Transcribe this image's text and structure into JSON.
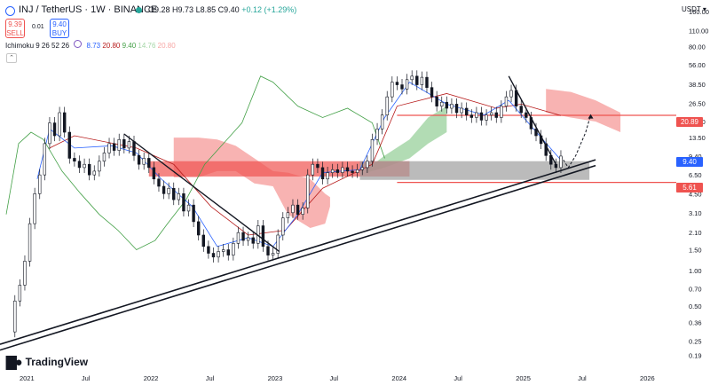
{
  "header": {
    "symbol": "INJ / TetherUS · 1W · BINANCE",
    "ohlc_open": "O9.28",
    "ohlc_high": "H9.73",
    "ohlc_low": "L8.85",
    "ohlc_close": "C9.40",
    "change": "+0.12 (+1.29%)",
    "sell_price": "9.39",
    "sell_label": "SELL",
    "spread": "0.01",
    "buy_price": "9.40",
    "buy_label": "BUY",
    "currency": "USDT",
    "indicator_name": "Ichimoku 9 26 52 26",
    "indicator_values": [
      "8.73",
      "20.80",
      "9.40",
      "14.76",
      "20.80"
    ]
  },
  "brand": {
    "logo_text": "TradingView"
  },
  "colors": {
    "up": "#26a69a",
    "down": "#ef5350",
    "candle": "#131722",
    "tenkan": "#2962ff",
    "kijun": "#b71c1c",
    "chikou": "#43a047",
    "cloud_bear": "#f7a6a4",
    "cloud_bull": "#a5d6a7",
    "accent": "#2962ff"
  },
  "price_tags": {
    "current": "9.40",
    "resistance": "20.89",
    "support": "5.61"
  },
  "chart_data": {
    "type": "candlestick",
    "scale": "log",
    "ylim": [
      0.14,
      200
    ],
    "y_ticks": [
      "160.00",
      "110.00",
      "80.00",
      "56.00",
      "38.50",
      "26.50",
      "18.50",
      "13.50",
      "9.40",
      "6.50",
      "4.50",
      "3.10",
      "2.10",
      "1.50",
      "1.00",
      "0.70",
      "0.50",
      "0.36",
      "0.25",
      "0.19"
    ],
    "x_ticks": [
      "2021",
      "Jul",
      "2022",
      "Jul",
      "2023",
      "Jul",
      "2024",
      "Jul",
      "2025",
      "Jul",
      "2026"
    ],
    "xlim": [
      2020.8,
      2026.25
    ],
    "closes": [
      [
        2020.87,
        0.3
      ],
      [
        2020.92,
        0.55
      ],
      [
        2020.96,
        0.75
      ],
      [
        2021.0,
        1.2
      ],
      [
        2021.04,
        2.5
      ],
      [
        2021.08,
        4.5
      ],
      [
        2021.12,
        6.5
      ],
      [
        2021.16,
        12.0
      ],
      [
        2021.2,
        18.0
      ],
      [
        2021.24,
        14.0
      ],
      [
        2021.28,
        22.0
      ],
      [
        2021.32,
        15.0
      ],
      [
        2021.36,
        9.0
      ],
      [
        2021.4,
        8.5
      ],
      [
        2021.44,
        7.5
      ],
      [
        2021.48,
        8.0
      ],
      [
        2021.52,
        6.5
      ],
      [
        2021.56,
        7.0
      ],
      [
        2021.6,
        8.5
      ],
      [
        2021.64,
        10.0
      ],
      [
        2021.68,
        12.0
      ],
      [
        2021.72,
        10.5
      ],
      [
        2021.76,
        13.0
      ],
      [
        2021.8,
        11.0
      ],
      [
        2021.84,
        12.5
      ],
      [
        2021.88,
        9.5
      ],
      [
        2021.92,
        8.0
      ],
      [
        2021.96,
        9.0
      ],
      [
        2022.0,
        7.5
      ],
      [
        2022.04,
        6.0
      ],
      [
        2022.08,
        5.2
      ],
      [
        2022.12,
        4.5
      ],
      [
        2022.16,
        5.0
      ],
      [
        2022.2,
        4.0
      ],
      [
        2022.24,
        4.5
      ],
      [
        2022.28,
        3.2
      ],
      [
        2022.32,
        3.6
      ],
      [
        2022.36,
        2.6
      ],
      [
        2022.4,
        2.0
      ],
      [
        2022.44,
        1.6
      ],
      [
        2022.48,
        1.4
      ],
      [
        2022.52,
        1.3
      ],
      [
        2022.56,
        1.45
      ],
      [
        2022.6,
        1.5
      ],
      [
        2022.64,
        1.35
      ],
      [
        2022.68,
        1.7
      ],
      [
        2022.72,
        2.1
      ],
      [
        2022.76,
        1.8
      ],
      [
        2022.8,
        1.9
      ],
      [
        2022.84,
        1.7
      ],
      [
        2022.88,
        2.4
      ],
      [
        2022.92,
        1.6
      ],
      [
        2022.96,
        1.35
      ],
      [
        2023.0,
        1.4
      ],
      [
        2023.04,
        2.0
      ],
      [
        2023.08,
        2.8
      ],
      [
        2023.12,
        3.1
      ],
      [
        2023.16,
        3.6
      ],
      [
        2023.2,
        3.0
      ],
      [
        2023.24,
        3.4
      ],
      [
        2023.28,
        6.5
      ],
      [
        2023.32,
        8.0
      ],
      [
        2023.36,
        7.5
      ],
      [
        2023.4,
        6.0
      ],
      [
        2023.44,
        6.8
      ],
      [
        2023.48,
        7.2
      ],
      [
        2023.52,
        6.8
      ],
      [
        2023.56,
        7.5
      ],
      [
        2023.6,
        7.0
      ],
      [
        2023.64,
        6.8
      ],
      [
        2023.68,
        7.2
      ],
      [
        2023.72,
        7.5
      ],
      [
        2023.76,
        8.5
      ],
      [
        2023.8,
        13.0
      ],
      [
        2023.84,
        16.0
      ],
      [
        2023.88,
        21.0
      ],
      [
        2023.92,
        30.0
      ],
      [
        2023.96,
        40.0
      ],
      [
        2024.0,
        38.0
      ],
      [
        2024.04,
        35.0
      ],
      [
        2024.08,
        42.0
      ],
      [
        2024.12,
        45.0
      ],
      [
        2024.16,
        38.0
      ],
      [
        2024.2,
        44.0
      ],
      [
        2024.24,
        36.0
      ],
      [
        2024.28,
        30.0
      ],
      [
        2024.32,
        25.0
      ],
      [
        2024.36,
        27.0
      ],
      [
        2024.4,
        24.0
      ],
      [
        2024.44,
        26.0
      ],
      [
        2024.48,
        22.0
      ],
      [
        2024.52,
        24.0
      ],
      [
        2024.56,
        21.0
      ],
      [
        2024.6,
        20.0
      ],
      [
        2024.64,
        22.0
      ],
      [
        2024.68,
        19.0
      ],
      [
        2024.72,
        21.0
      ],
      [
        2024.76,
        22.0
      ],
      [
        2024.8,
        20.0
      ],
      [
        2024.84,
        25.0
      ],
      [
        2024.88,
        30.0
      ],
      [
        2024.92,
        34.0
      ],
      [
        2024.96,
        25.0
      ],
      [
        2025.0,
        22.0
      ],
      [
        2025.04,
        20.0
      ],
      [
        2025.08,
        16.0
      ],
      [
        2025.12,
        14.0
      ],
      [
        2025.16,
        12.0
      ],
      [
        2025.2,
        9.5
      ],
      [
        2025.24,
        8.0
      ],
      [
        2025.28,
        7.5
      ],
      [
        2025.32,
        9.4
      ]
    ],
    "projection": [
      [
        2025.32,
        9.4
      ],
      [
        2025.38,
        7.5
      ],
      [
        2025.44,
        9.5
      ],
      [
        2025.52,
        15.0
      ],
      [
        2025.56,
        21.0
      ]
    ],
    "cloud_bearish": [
      [
        2022.2,
        6.2,
        13.5
      ],
      [
        2022.4,
        6.2,
        13.5
      ],
      [
        2022.55,
        7.0,
        13.0
      ],
      [
        2022.7,
        7.0,
        11.5
      ],
      [
        2022.85,
        5.5,
        9.0
      ],
      [
        2023.0,
        5.2,
        7.0
      ],
      [
        2023.12,
        3.0,
        6.8
      ],
      [
        2023.3,
        2.3,
        6.0
      ],
      [
        2023.42,
        2.5,
        4.5
      ],
      [
        2023.46,
        3.5,
        4.2
      ]
    ],
    "cloud_bull": [
      [
        2023.75,
        6.8,
        7.2
      ],
      [
        2023.9,
        7.5,
        9.5
      ],
      [
        2024.1,
        9.0,
        13.0
      ],
      [
        2024.25,
        12.0,
        20.0
      ],
      [
        2024.4,
        15.0,
        25.0
      ]
    ],
    "cloud_bear_2025": [
      [
        2025.2,
        22.0,
        35.0
      ],
      [
        2025.4,
        20.0,
        33.0
      ],
      [
        2025.6,
        18.5,
        28.0
      ],
      [
        2025.8,
        15.0,
        22.0
      ]
    ],
    "tenkan": [
      [
        2021.1,
        6.0
      ],
      [
        2021.2,
        16.0
      ],
      [
        2021.4,
        11.0
      ],
      [
        2021.7,
        11.5
      ],
      [
        2021.9,
        10.0
      ],
      [
        2022.1,
        6.0
      ],
      [
        2022.35,
        3.5
      ],
      [
        2022.55,
        1.6
      ],
      [
        2022.8,
        1.9
      ],
      [
        2023.0,
        1.6
      ],
      [
        2023.2,
        3.0
      ],
      [
        2023.4,
        6.8
      ],
      [
        2023.7,
        7.2
      ],
      [
        2023.9,
        20.0
      ],
      [
        2024.1,
        40.0
      ],
      [
        2024.4,
        26.0
      ],
      [
        2024.7,
        21.0
      ],
      [
        2024.9,
        28.0
      ],
      [
        2025.1,
        16.0
      ],
      [
        2025.32,
        8.7
      ]
    ],
    "kijun": [
      [
        2021.2,
        11.0
      ],
      [
        2021.4,
        14.0
      ],
      [
        2021.9,
        11.0
      ],
      [
        2022.2,
        8.0
      ],
      [
        2022.5,
        3.5
      ],
      [
        2022.8,
        2.0
      ],
      [
        2023.1,
        2.2
      ],
      [
        2023.4,
        5.0
      ],
      [
        2023.8,
        8.0
      ],
      [
        2024.0,
        25.0
      ],
      [
        2024.4,
        32.0
      ],
      [
        2024.8,
        24.0
      ],
      [
        2025.0,
        26.0
      ],
      [
        2025.32,
        20.8
      ]
    ],
    "chikou": [
      [
        2020.85,
        3.0
      ],
      [
        2020.95,
        12.0
      ],
      [
        2021.05,
        15.0
      ],
      [
        2021.15,
        13.0
      ],
      [
        2021.3,
        7.0
      ],
      [
        2021.45,
        4.5
      ],
      [
        2021.6,
        3.0
      ],
      [
        2021.75,
        2.2
      ],
      [
        2021.9,
        1.5
      ],
      [
        2022.05,
        1.8
      ],
      [
        2022.15,
        2.5
      ],
      [
        2022.3,
        4.0
      ],
      [
        2022.45,
        8.0
      ],
      [
        2022.6,
        12.0
      ],
      [
        2022.75,
        18.0
      ],
      [
        2022.9,
        45.0
      ],
      [
        2023.0,
        40.0
      ],
      [
        2023.2,
        25.0
      ],
      [
        2023.4,
        20.0
      ],
      [
        2023.6,
        24.0
      ],
      [
        2023.8,
        18.0
      ],
      [
        2023.9,
        9.0
      ]
    ],
    "zone_red": [
      2022.0,
      2024.1,
      6.3,
      8.5
    ],
    "zone_gray": [
      2023.7,
      2025.55,
      5.9,
      8.5
    ],
    "levels": [
      5.61,
      20.89
    ],
    "level_start": 2024.0,
    "downtrend_2022": [
      [
        2021.8,
        14.5
      ],
      [
        2023.05,
        1.45
      ]
    ],
    "downtrend_2025": [
      [
        2024.9,
        45.0
      ],
      [
        2025.28,
        8.0
      ]
    ],
    "uptrend": [
      [
        2020.8,
        0.21
      ],
      [
        2025.6,
        7.8
      ]
    ]
  }
}
